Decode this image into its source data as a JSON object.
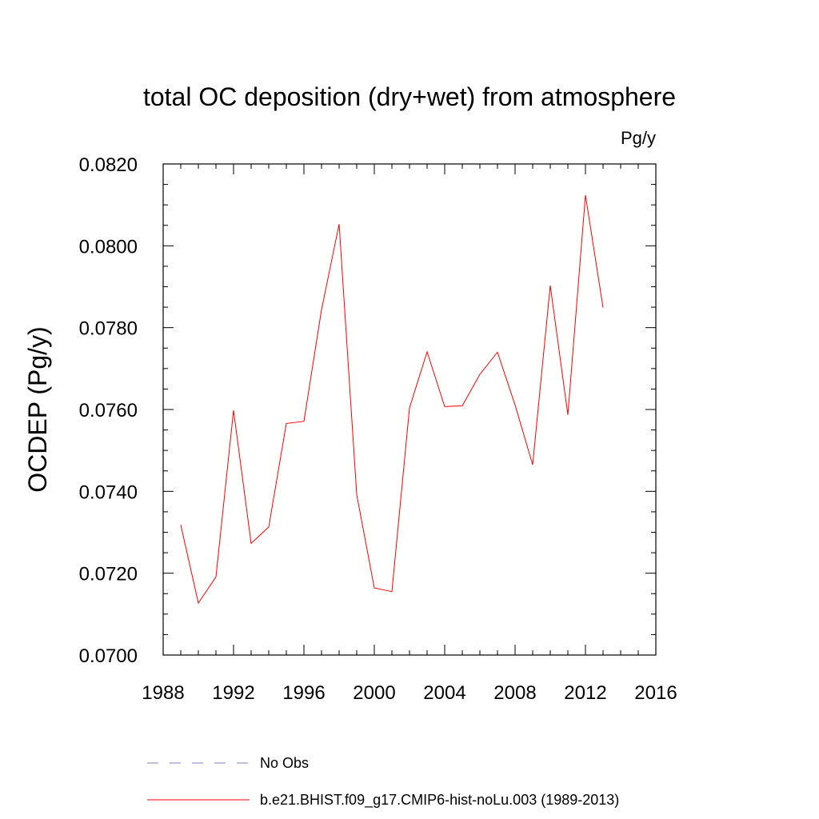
{
  "chart_data": {
    "type": "line",
    "title": "total OC deposition (dry+wet) from atmosphere",
    "units_label": "Pg/y",
    "ylabel": "OCDEP  (Pg/y)",
    "xlabel": "",
    "xlim": [
      1988,
      2016
    ],
    "ylim": [
      0.07,
      0.082
    ],
    "x_ticks": [
      1988,
      1992,
      1996,
      2000,
      2004,
      2008,
      2012,
      2016
    ],
    "x_tick_labels": [
      "1988",
      "1992",
      "1996",
      "2000",
      "2004",
      "2008",
      "2012",
      "2016"
    ],
    "y_ticks": [
      0.07,
      0.072,
      0.074,
      0.076,
      0.078,
      0.08,
      0.082
    ],
    "y_tick_labels": [
      "0.0700",
      "0.0720",
      "0.0740",
      "0.0760",
      "0.0780",
      "0.0800",
      "0.0820"
    ],
    "grid": false,
    "legend_position": "bottom",
    "series": [
      {
        "name": "b.e21.BHIST.f09_g17.CMIP6-hist-noLu.003 (1989-2013)",
        "color": "#ff0000",
        "style": "solid",
        "x": [
          1989,
          1990,
          1991,
          1992,
          1993,
          1994,
          1995,
          1996,
          1997,
          1998,
          1999,
          2000,
          2001,
          2002,
          2003,
          2004,
          2005,
          2006,
          2007,
          2008,
          2009,
          2010,
          2011,
          2012,
          2013
        ],
        "values": [
          0.07318,
          0.07127,
          0.07191,
          0.07598,
          0.07273,
          0.07313,
          0.07566,
          0.07571,
          0.07844,
          0.08053,
          0.07392,
          0.07164,
          0.07155,
          0.07604,
          0.07741,
          0.07607,
          0.07609,
          0.07686,
          0.0774,
          0.07611,
          0.07465,
          0.07903,
          0.07587,
          0.08124,
          0.07849
        ]
      }
    ],
    "legend": [
      {
        "label": "No Obs",
        "color": "#7f7fbf",
        "style": "dashed"
      },
      {
        "label": "b.e21.BHIST.f09_g17.CMIP6-hist-noLu.003 (1989-2013)",
        "color": "#ff0000",
        "style": "solid"
      }
    ]
  }
}
